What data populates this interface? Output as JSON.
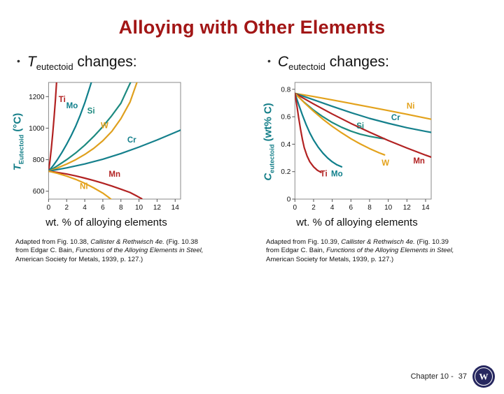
{
  "title": "Alloying with Other Elements",
  "colors": {
    "title_red": "#a21616",
    "axis_teal": "#127d87",
    "series_red": "#b22222",
    "series_teal_dark": "#0f7f8b",
    "series_teal": "#1d8a80",
    "series_gold": "#e3a21c",
    "series_gold_dark": "#dfa01e"
  },
  "left_panel": {
    "bullet": {
      "marker": "•",
      "symbol": "T",
      "sub": "eutectoid",
      "rest": " changes:"
    },
    "y_axis": {
      "symbol": "T",
      "sub": "Eutectoid",
      "rest": " (°C)"
    },
    "x_label": "wt. % of alloying elements",
    "caption": [
      {
        "t": "Adapted from Fig. 10.38,",
        "i": false
      },
      {
        "t": " Callister & Rethwisch 4e.",
        "i": true
      },
      {
        "t": " (Fig. 10.38 from Edgar C. Bain, ",
        "i": false
      },
      {
        "t": "Functions of the Alloying Elements in Steel,",
        "i": true
      },
      {
        "t": " American Society for Metals, 1939, p. 127.)",
        "i": false
      }
    ]
  },
  "right_panel": {
    "bullet": {
      "marker": "•",
      "symbol": "C",
      "sub": "eutectoid",
      "rest": " changes:"
    },
    "y_axis": {
      "symbol": "C",
      "sub": "eutectoid",
      "rest": " (wt% C)"
    },
    "x_label": "wt. % of alloying elements",
    "caption": [
      {
        "t": "Adapted from Fig. 10.39,",
        "i": false
      },
      {
        "t": " Callister & Rethwisch 4e.",
        "i": true
      },
      {
        "t": " (Fig. 10.39 from Edgar C. Bain, ",
        "i": false
      },
      {
        "t": "Functions of the Alloying Elements in Steel,",
        "i": true
      },
      {
        "t": " American Society for Metals, 1939, p. 127.)",
        "i": false
      }
    ]
  },
  "footer": {
    "chapter": "Chapter 10 -",
    "page": "37",
    "logo": "university-seal",
    "logo_letter": "W"
  },
  "chart_data": [
    {
      "type": "line",
      "title": "Teutectoid changes",
      "xlabel": "wt. % of alloying elements",
      "ylabel": "T Eutectoid (°C)",
      "xlim": [
        0,
        14.6
      ],
      "ylim": [
        550,
        1290
      ],
      "xticks": [
        0,
        2,
        4,
        6,
        8,
        10,
        12,
        14
      ],
      "yticks": [
        600,
        800,
        1000,
        1200
      ],
      "grid": false,
      "legend": "inline-labels",
      "series": [
        {
          "name": "Ti",
          "color": "#b22222",
          "label": [
            1.5,
            1165
          ],
          "points": [
            [
              0,
              727
            ],
            [
              0.15,
              790
            ],
            [
              0.3,
              870
            ],
            [
              0.45,
              960
            ],
            [
              0.6,
              1065
            ],
            [
              0.75,
              1175
            ],
            [
              0.88,
              1290
            ]
          ]
        },
        {
          "name": "Mo",
          "color": "#0f7f8b",
          "label": [
            2.6,
            1125
          ],
          "points": [
            [
              0,
              727
            ],
            [
              0.5,
              762
            ],
            [
              1,
              802
            ],
            [
              1.5,
              848
            ],
            [
              2,
              898
            ],
            [
              2.5,
              953
            ],
            [
              3,
              1013
            ],
            [
              3.5,
              1082
            ],
            [
              4,
              1160
            ],
            [
              4.5,
              1248
            ],
            [
              4.75,
              1295
            ]
          ]
        },
        {
          "name": "Si",
          "color": "#1d8a80",
          "label": [
            4.7,
            1092
          ],
          "points": [
            [
              0,
              727
            ],
            [
              1,
              762
            ],
            [
              2,
              800
            ],
            [
              3,
              843
            ],
            [
              4,
              892
            ],
            [
              5,
              948
            ],
            [
              6,
              1010
            ],
            [
              7,
              1080
            ],
            [
              8,
              1158
            ],
            [
              8.8,
              1258
            ],
            [
              9.1,
              1295
            ]
          ]
        },
        {
          "name": "W",
          "color": "#dfa01e",
          "label": [
            6.2,
            1000
          ],
          "points": [
            [
              0,
              727
            ],
            [
              1,
              748
            ],
            [
              2,
              772
            ],
            [
              3,
              800
            ],
            [
              4,
              833
            ],
            [
              5,
              872
            ],
            [
              6,
              920
            ],
            [
              7,
              980
            ],
            [
              8,
              1060
            ],
            [
              9,
              1165
            ],
            [
              9.8,
              1295
            ]
          ]
        },
        {
          "name": "Cr",
          "color": "#15808c",
          "label": [
            9.2,
            908
          ],
          "points": [
            [
              0,
              727
            ],
            [
              2,
              748
            ],
            [
              4,
              773
            ],
            [
              6,
              803
            ],
            [
              8,
              839
            ],
            [
              10,
              880
            ],
            [
              12,
              925
            ],
            [
              14,
              973
            ],
            [
              14.6,
              988
            ]
          ]
        },
        {
          "name": "Mn",
          "color": "#b22222",
          "label": [
            7.3,
            692
          ],
          "points": [
            [
              0,
              727
            ],
            [
              1,
              719
            ],
            [
              2,
              709
            ],
            [
              3,
              697
            ],
            [
              4,
              683
            ],
            [
              5,
              668
            ],
            [
              6,
              651
            ],
            [
              7,
              633
            ],
            [
              8,
              613
            ],
            [
              9,
              592
            ],
            [
              9.8,
              568
            ],
            [
              10.3,
              552
            ]
          ]
        },
        {
          "name": "Ni",
          "color": "#e3a21c",
          "label": [
            3.9,
            615
          ],
          "points": [
            [
              0,
              727
            ],
            [
              1,
              713
            ],
            [
              2,
              696
            ],
            [
              3,
              675
            ],
            [
              4,
              650
            ],
            [
              5,
              621
            ],
            [
              6,
              588
            ],
            [
              6.6,
              563
            ],
            [
              7,
              545
            ]
          ]
        }
      ]
    },
    {
      "type": "line",
      "title": "Ceutectoid changes",
      "xlabel": "wt. % of alloying elements",
      "ylabel": "C eutectoid (wt% C)",
      "xlim": [
        0,
        14.6
      ],
      "ylim": [
        0,
        0.85
      ],
      "xticks": [
        0,
        2,
        4,
        6,
        8,
        10,
        12,
        14
      ],
      "yticks": [
        0,
        0.2,
        0.4,
        0.6,
        0.8
      ],
      "grid": false,
      "legend": "inline-labels",
      "series": [
        {
          "name": "Ni",
          "color": "#e3a21c",
          "label": [
            12.4,
            0.66
          ],
          "points": [
            [
              0,
              0.77
            ],
            [
              2,
              0.747
            ],
            [
              4,
              0.722
            ],
            [
              6,
              0.697
            ],
            [
              8,
              0.671
            ],
            [
              10,
              0.645
            ],
            [
              12,
              0.618
            ],
            [
              14,
              0.59
            ],
            [
              14.6,
              0.582
            ]
          ]
        },
        {
          "name": "Cr",
          "color": "#15808c",
          "label": [
            10.8,
            0.575
          ],
          "points": [
            [
              0,
              0.77
            ],
            [
              2,
              0.724
            ],
            [
              4,
              0.676
            ],
            [
              6,
              0.63
            ],
            [
              8,
              0.588
            ],
            [
              10,
              0.552
            ],
            [
              12,
              0.52
            ],
            [
              14,
              0.493
            ],
            [
              14.6,
              0.486
            ]
          ]
        },
        {
          "name": "Si",
          "color": "#1d8a80",
          "label": [
            7,
            0.515
          ],
          "points": [
            [
              0,
              0.77
            ],
            [
              1,
              0.705
            ],
            [
              2,
              0.648
            ],
            [
              3,
              0.6
            ],
            [
              4,
              0.558
            ],
            [
              5,
              0.523
            ],
            [
              6,
              0.495
            ],
            [
              7,
              0.473
            ],
            [
              8,
              0.457
            ],
            [
              9,
              0.445
            ],
            [
              9.6,
              0.44
            ]
          ]
        },
        {
          "name": "Mn",
          "color": "#b22222",
          "label": [
            13.3,
            0.26
          ],
          "points": [
            [
              0,
              0.77
            ],
            [
              2,
              0.693
            ],
            [
              4,
              0.62
            ],
            [
              6,
              0.551
            ],
            [
              8,
              0.487
            ],
            [
              10,
              0.427
            ],
            [
              12,
              0.372
            ],
            [
              14,
              0.32
            ],
            [
              14.6,
              0.306
            ]
          ]
        },
        {
          "name": "W",
          "color": "#e3a21c",
          "label": [
            9.7,
            0.245
          ],
          "points": [
            [
              0,
              0.77
            ],
            [
              1,
              0.703
            ],
            [
              2,
              0.64
            ],
            [
              3,
              0.582
            ],
            [
              4,
              0.53
            ],
            [
              5,
              0.483
            ],
            [
              6,
              0.44
            ],
            [
              7,
              0.402
            ],
            [
              8,
              0.368
            ],
            [
              9,
              0.338
            ],
            [
              9.6,
              0.322
            ]
          ]
        },
        {
          "name": "Mo",
          "color": "#0f7f8b",
          "label": [
            4.5,
            0.165
          ],
          "points": [
            [
              0,
              0.77
            ],
            [
              0.4,
              0.69
            ],
            [
              0.8,
              0.613
            ],
            [
              1.2,
              0.543
            ],
            [
              1.6,
              0.482
            ],
            [
              2,
              0.43
            ],
            [
              2.5,
              0.378
            ],
            [
              3,
              0.335
            ],
            [
              3.5,
              0.3
            ],
            [
              4,
              0.272
            ],
            [
              4.5,
              0.25
            ],
            [
              5,
              0.235
            ]
          ]
        },
        {
          "name": "Ti",
          "color": "#b22222",
          "label": [
            3.1,
            0.165
          ],
          "points": [
            [
              0,
              0.77
            ],
            [
              0.2,
              0.685
            ],
            [
              0.4,
              0.595
            ],
            [
              0.6,
              0.51
            ],
            [
              0.8,
              0.435
            ],
            [
              1,
              0.375
            ],
            [
              1.3,
              0.315
            ],
            [
              1.6,
              0.272
            ],
            [
              2,
              0.235
            ],
            [
              2.4,
              0.21
            ],
            [
              2.8,
              0.195
            ]
          ]
        }
      ]
    }
  ]
}
